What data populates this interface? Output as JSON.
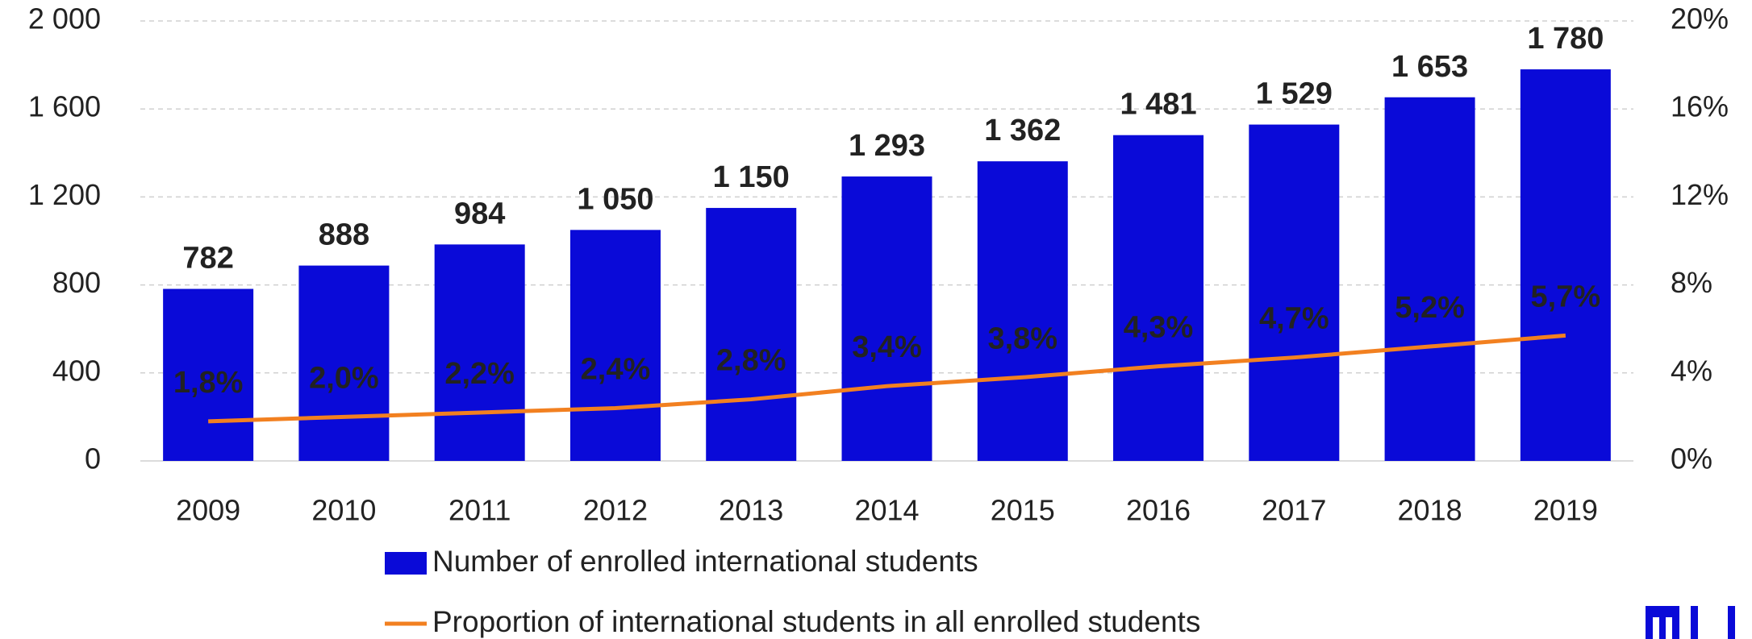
{
  "chart_data": {
    "type": "bar",
    "categories": [
      "2009",
      "2010",
      "2011",
      "2012",
      "2013",
      "2014",
      "2015",
      "2016",
      "2017",
      "2018",
      "2019"
    ],
    "series": [
      {
        "name": "Number of enrolled international students",
        "color": "#0a0ad8",
        "type": "bar",
        "values": [
          782,
          888,
          984,
          1050,
          1150,
          1293,
          1362,
          1481,
          1529,
          1653,
          1780
        ],
        "value_labels": [
          "782",
          "888",
          "984",
          "1 050",
          "1 150",
          "1 293",
          "1 362",
          "1 481",
          "1 529",
          "1 653",
          "1 780"
        ]
      },
      {
        "name": "Proportion of international students in all enrolled students",
        "color": "#f28020",
        "type": "line",
        "axis": "y2",
        "values": [
          1.8,
          2.0,
          2.2,
          2.4,
          2.8,
          3.4,
          3.8,
          4.3,
          4.7,
          5.2,
          5.7
        ],
        "value_labels": [
          "1,8%",
          "2,0%",
          "2,2%",
          "2,4%",
          "2,8%",
          "3,4%",
          "3,8%",
          "4,3%",
          "4,7%",
          "5,2%",
          "5,7%"
        ]
      }
    ],
    "ylim": [
      0,
      2000
    ],
    "yticks": [
      0,
      400,
      800,
      {
        "value": 1200,
        "label": "1 200"
      },
      {
        "value": 1600,
        "label": "1 600"
      },
      {
        "value": 2000,
        "label": "2 000"
      }
    ],
    "y2lim": [
      0,
      20
    ],
    "y2ticks": [
      {
        "value": 0,
        "label": "0%"
      },
      {
        "value": 4,
        "label": "4%"
      },
      {
        "value": 8,
        "label": "8%"
      },
      {
        "value": 12,
        "label": "12%"
      },
      {
        "value": 16,
        "label": "16%"
      },
      {
        "value": 20,
        "label": "20%"
      }
    ],
    "grid": true,
    "legend": "bottom"
  }
}
